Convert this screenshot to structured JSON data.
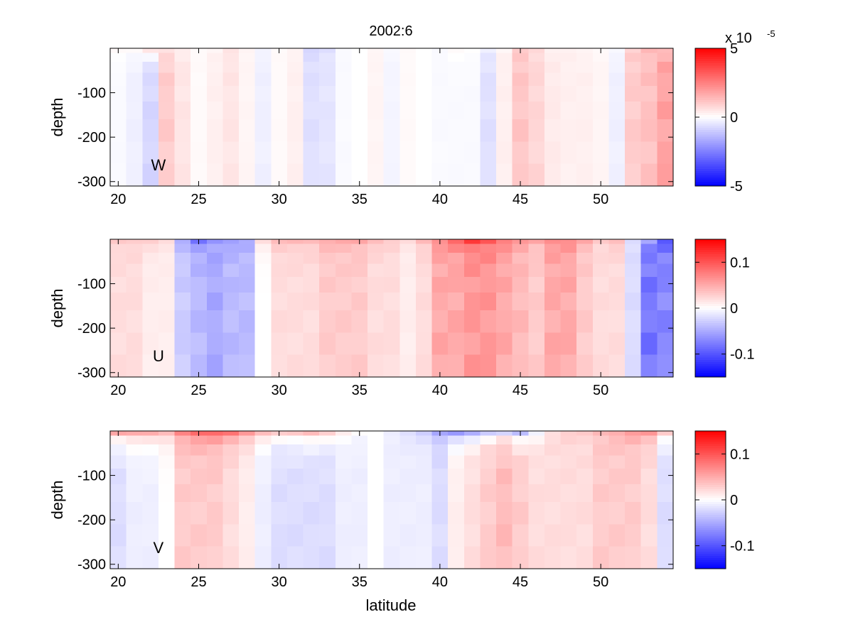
{
  "chart_data": {
    "type": "heatmap",
    "title": "2002:6",
    "xlabel": "latitude",
    "colormap": [
      "#0000ff",
      "#ffffff",
      "#ff0000"
    ],
    "x_edges": [
      19.5,
      20.5,
      21.5,
      22.5,
      23.5,
      24.5,
      25.5,
      26.5,
      27.5,
      28.5,
      29.5,
      30.5,
      31.5,
      32.5,
      33.5,
      34.5,
      35.5,
      36.5,
      37.5,
      38.5,
      39.5,
      40.5,
      41.5,
      42.5,
      43.5,
      44.5,
      45.5,
      46.5,
      47.5,
      48.5,
      49.5,
      50.5,
      51.5,
      52.5,
      53.5,
      54.5
    ],
    "depth_edges": [
      0,
      -10,
      -30,
      -55,
      -85,
      -120,
      -160,
      -210,
      -260,
      -310
    ],
    "panels": [
      {
        "label": "W",
        "ylabel": "depth",
        "ylim": [
          -310,
          0
        ],
        "yticks": [
          -100,
          -200,
          -300
        ],
        "xlim": [
          19.5,
          54.5
        ],
        "xticks": [
          20,
          25,
          30,
          35,
          40,
          45,
          50
        ],
        "clim": [
          -5,
          5
        ],
        "colorbar_ticks": [
          -5,
          0,
          5
        ],
        "colorbar_exponent": "x 10",
        "colorbar_exponent_power": "-5",
        "columns": [
          -0.1,
          -0.3,
          -0.8,
          1.0,
          0.5,
          0.1,
          0.3,
          0.5,
          0.2,
          -0.3,
          0.1,
          0.3,
          -0.6,
          -0.5,
          -0.1,
          0.0,
          0.2,
          -0.2,
          0.1,
          0.0,
          -0.1,
          -0.1,
          -0.1,
          -0.6,
          0.3,
          1.1,
          0.8,
          0.4,
          0.3,
          0.3,
          0.2,
          -0.3,
          1.0,
          1.2,
          1.8
        ],
        "top_rows": [
          0.1,
          0.1,
          0.6,
          0.5,
          0.3,
          0.1,
          0.2,
          0.5,
          0.2,
          -0.2,
          0.1,
          0.2,
          -0.8,
          -0.6,
          -0.1,
          0.0,
          0.2,
          -0.1,
          0.1,
          0.0,
          -0.1,
          0.1,
          0.0,
          -0.3,
          0.2,
          1.0,
          0.7,
          0.3,
          0.3,
          0.2,
          0.1,
          -0.1,
          0.9,
          1.3,
          1.3
        ]
      },
      {
        "label": "U",
        "ylabel": "depth",
        "ylim": [
          -310,
          0
        ],
        "yticks": [
          -100,
          -200,
          -300
        ],
        "xlim": [
          19.5,
          54.5
        ],
        "xticks": [
          20,
          25,
          30,
          35,
          40,
          45,
          50
        ],
        "clim": [
          -0.15,
          0.15
        ],
        "colorbar_ticks": [
          -0.1,
          0,
          0.1
        ],
        "columns": [
          0.02,
          0.02,
          0.01,
          0.01,
          -0.03,
          -0.04,
          -0.05,
          -0.04,
          -0.04,
          0.0,
          0.02,
          0.02,
          0.02,
          0.03,
          0.03,
          0.03,
          0.02,
          0.02,
          0.01,
          0.02,
          0.05,
          0.05,
          0.06,
          0.06,
          0.05,
          0.04,
          0.03,
          0.05,
          0.05,
          0.03,
          0.02,
          0.02,
          -0.02,
          -0.08,
          -0.07
        ],
        "top_rows": [
          0.03,
          0.03,
          0.03,
          0.02,
          -0.05,
          -0.08,
          -0.06,
          -0.06,
          -0.05,
          0.02,
          0.04,
          0.04,
          0.04,
          0.05,
          0.05,
          0.05,
          0.04,
          0.03,
          0.02,
          0.04,
          0.07,
          0.09,
          0.11,
          0.1,
          0.08,
          0.06,
          0.05,
          0.07,
          0.07,
          0.05,
          0.03,
          0.04,
          -0.02,
          -0.06,
          -0.1
        ]
      },
      {
        "label": "V",
        "ylabel": "depth",
        "xlabel": "latitude",
        "ylim": [
          -310,
          0
        ],
        "yticks": [
          -100,
          -200,
          -300
        ],
        "xlim": [
          19.5,
          54.5
        ],
        "xticks": [
          20,
          25,
          30,
          35,
          40,
          45,
          50
        ],
        "clim": [
          -0.15,
          0.15
        ],
        "colorbar_ticks": [
          -0.1,
          0,
          0.1
        ],
        "columns": [
          -0.02,
          -0.01,
          -0.01,
          0.0,
          0.03,
          0.03,
          0.03,
          0.02,
          0.01,
          -0.01,
          -0.02,
          -0.02,
          -0.02,
          -0.02,
          -0.01,
          -0.01,
          0.0,
          -0.01,
          -0.01,
          -0.01,
          -0.02,
          0.01,
          0.02,
          0.03,
          0.04,
          0.03,
          0.02,
          0.02,
          0.02,
          0.02,
          0.03,
          0.03,
          0.03,
          0.02,
          -0.02
        ],
        "top_rows": [
          0.05,
          0.05,
          0.05,
          0.04,
          0.07,
          0.09,
          0.09,
          0.08,
          0.06,
          0.04,
          0.03,
          0.03,
          0.04,
          0.03,
          0.01,
          0.0,
          0.0,
          -0.01,
          -0.02,
          -0.03,
          -0.05,
          -0.06,
          -0.05,
          -0.03,
          -0.02,
          -0.04,
          -0.01,
          0.02,
          0.03,
          0.03,
          0.04,
          0.05,
          0.06,
          0.06,
          0.03
        ]
      }
    ]
  }
}
